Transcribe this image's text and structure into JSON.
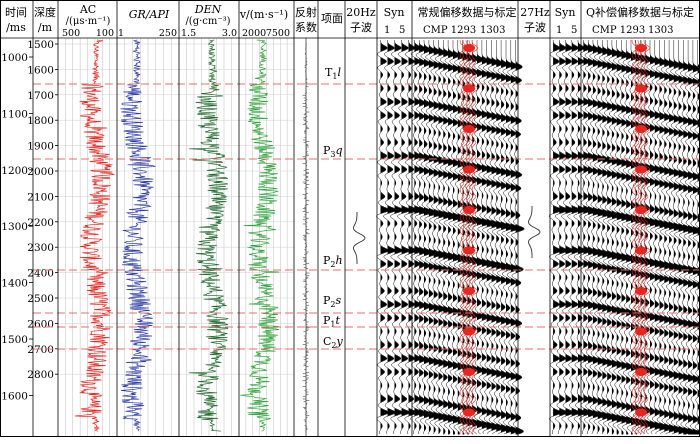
{
  "headers": {
    "time": [
      "时间",
      "/ms"
    ],
    "depth": [
      "深度",
      "/m"
    ],
    "ac": [
      "AC",
      "/(μs·m⁻¹)"
    ],
    "gr": "GR/API",
    "den": [
      "DEN",
      "/(g·cm⁻³)"
    ],
    "v": "v/(m·s⁻¹)",
    "refl": [
      "反射",
      "系数"
    ],
    "horizon": "项面",
    "w20": [
      "20Hz",
      "子波"
    ],
    "syn1": "Syn",
    "conv": [
      "常规偏移数据与标定",
      "CMP 1293",
      "1303"
    ],
    "w27": [
      "27Hz",
      "子波"
    ],
    "syn2": "Syn",
    "qcomp": [
      "Q补偿偏移数据与标定",
      "CMP 1293",
      "1303"
    ]
  },
  "scales": {
    "ac": [
      "500",
      "100"
    ],
    "gr": [
      "1",
      "250"
    ],
    "den": [
      "1.5",
      "3.0"
    ],
    "v": [
      "2000",
      "7500"
    ],
    "syn": [
      "1",
      "5"
    ]
  },
  "time_ticks": [
    "1000",
    "1100",
    "1200",
    "1300",
    "1400",
    "1500",
    "1600"
  ],
  "depth_ticks": [
    "1500",
    "1600",
    "1700",
    "1800",
    "1900",
    "2000",
    "2100",
    "2200",
    "2300",
    "2400",
    "2500",
    "2600",
    "2700",
    "2800"
  ],
  "horizons": [
    {
      "base": "T",
      "sub": "1",
      "suffix": "l"
    },
    {
      "base": "P",
      "sub": "3",
      "suffix": "q"
    },
    {
      "base": "P",
      "sub": "2",
      "suffix": "h"
    },
    {
      "base": "P",
      "sub": "2",
      "suffix": "s"
    },
    {
      "base": "P",
      "sub": "1",
      "suffix": "t"
    },
    {
      "base": "C",
      "sub": "2",
      "suffix": "y"
    }
  ],
  "colors": {
    "ac": "#e8251f",
    "gr": "#2b3aa8",
    "den": "#1f6a2c",
    "v": "#2ea33a",
    "dashed": "#e0706c",
    "calib": "#e8251f"
  }
}
